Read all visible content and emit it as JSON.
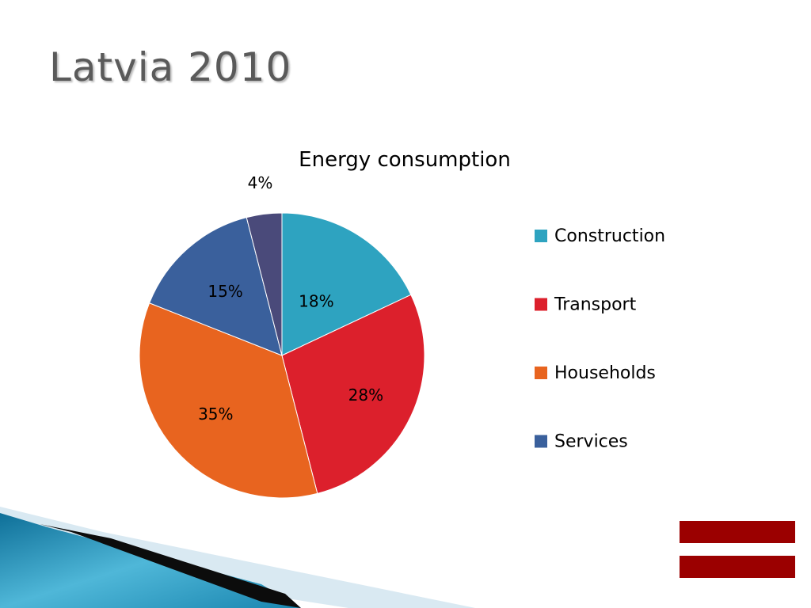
{
  "slide": {
    "title": "Latvia 2010"
  },
  "chart_data": {
    "type": "pie",
    "title": "Energy consumption",
    "categories": [
      "Construction",
      "Transport",
      "Households",
      "Services",
      ""
    ],
    "values": [
      18,
      28,
      35,
      15,
      4
    ],
    "labels": [
      "18%",
      "28%",
      "35%",
      "15%",
      "4%"
    ],
    "colors": [
      "#2ea3c0",
      "#dc202c",
      "#e8641f",
      "#3a609c",
      "#4a4a7a"
    ],
    "legend": {
      "placement": "right",
      "entries": [
        "Construction",
        "Transport",
        "Households",
        "Services"
      ]
    }
  },
  "decor": {
    "wave_colors": [
      "#1f8fb0",
      "#0c0c0c",
      "#d9e9f2"
    ],
    "flag_color": "#9b0000"
  }
}
